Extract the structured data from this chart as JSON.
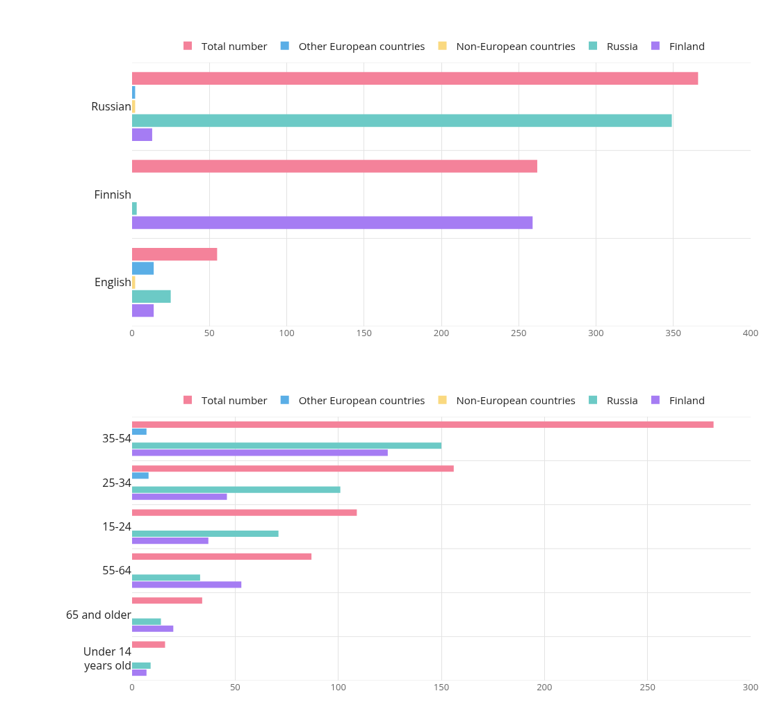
{
  "chart_data": [
    {
      "type": "bar",
      "orientation": "horizontal",
      "categories": [
        "Russian",
        "Finnish",
        "English"
      ],
      "legend": "top",
      "grid": true,
      "xlim": [
        0,
        400
      ],
      "xticks": [
        0,
        50,
        100,
        150,
        200,
        250,
        300,
        350,
        400
      ],
      "series": [
        {
          "name": "Total number",
          "color": "#f4829a",
          "values": [
            366,
            262,
            55
          ]
        },
        {
          "name": "Other European countries",
          "color": "#5aaee6",
          "values": [
            2,
            0,
            14
          ]
        },
        {
          "name": "Non-European countries",
          "color": "#fad980",
          "values": [
            2,
            0,
            2
          ]
        },
        {
          "name": "Russia",
          "color": "#6ccac6",
          "values": [
            349,
            3,
            25
          ]
        },
        {
          "name": "Finland",
          "color": "#a57cf3",
          "values": [
            13,
            259,
            14
          ]
        }
      ]
    },
    {
      "type": "bar",
      "orientation": "horizontal",
      "categories": [
        "35-54",
        "25-34",
        "15-24",
        "55-64",
        "65 and older",
        "Under 14 years old"
      ],
      "legend": "top",
      "grid": true,
      "xlim": [
        0,
        300
      ],
      "xticks": [
        0,
        50,
        100,
        150,
        200,
        250,
        300
      ],
      "series": [
        {
          "name": "Total number",
          "color": "#f4829a",
          "values": [
            282,
            156,
            109,
            87,
            34,
            16
          ]
        },
        {
          "name": "Other European countries",
          "color": "#5aaee6",
          "values": [
            7,
            8,
            0,
            0,
            0,
            0
          ]
        },
        {
          "name": "Non-European countries",
          "color": "#fad980",
          "values": [
            0,
            0,
            0,
            0,
            0,
            0
          ]
        },
        {
          "name": "Russia",
          "color": "#6ccac6",
          "values": [
            150,
            101,
            71,
            33,
            14,
            9
          ]
        },
        {
          "name": "Finland",
          "color": "#a57cf3",
          "values": [
            124,
            46,
            37,
            53,
            20,
            7
          ]
        }
      ]
    }
  ]
}
